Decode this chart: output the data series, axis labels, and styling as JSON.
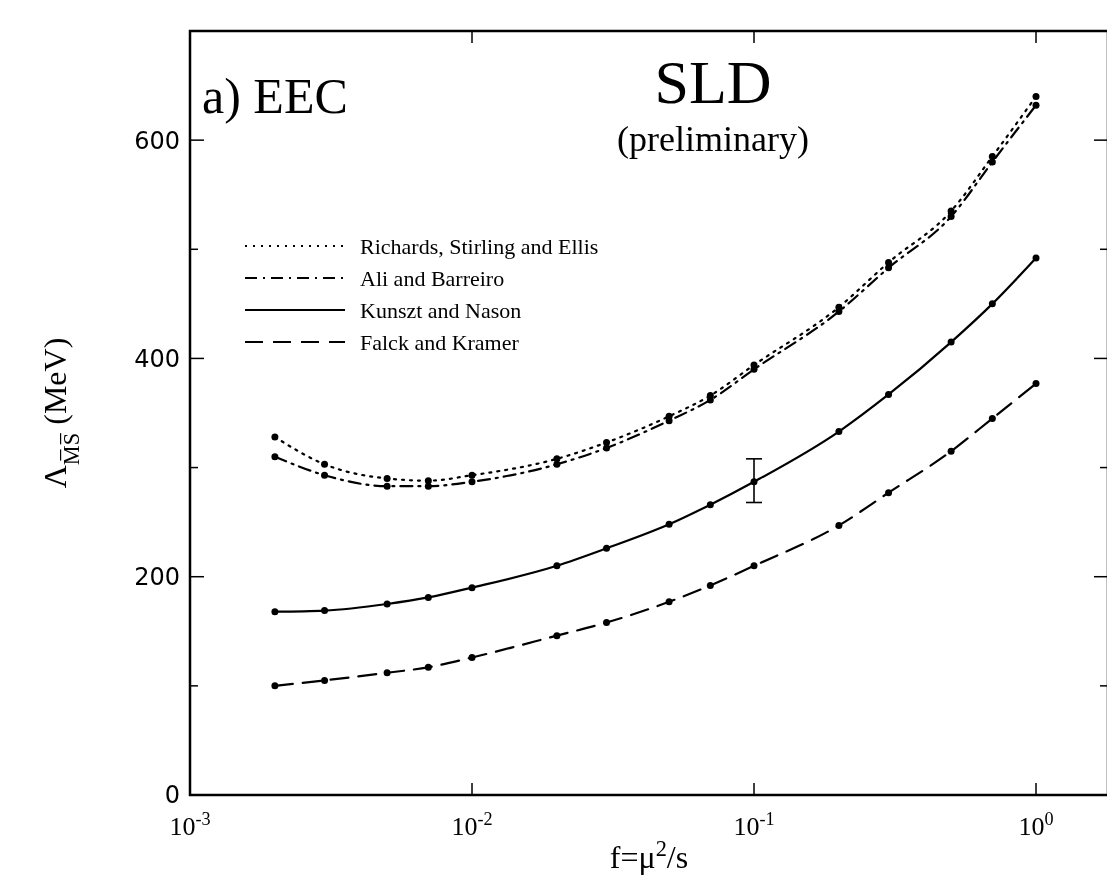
{
  "chart_data": {
    "type": "line",
    "title": "SLD",
    "subtitle": "(preliminary)",
    "xlabel": "f=μ$^{2}$/s",
    "ylabel": "Λ$_{M̅S̅}$ (MeV)",
    "annotations": [
      "a) EEC"
    ],
    "x": [
      0.002,
      0.003,
      0.005,
      0.007,
      0.01,
      0.02,
      0.03,
      0.05,
      0.07,
      0.1,
      0.2,
      0.3,
      0.5,
      0.7,
      1.0
    ],
    "series": [
      {
        "name": "Richards, Stirling and Ellis",
        "color": "#000000",
        "line_style": "dotted",
        "values": [
          328,
          303,
          290,
          288,
          293,
          308,
          323,
          347,
          366,
          394,
          447,
          488,
          535,
          585,
          640
        ]
      },
      {
        "name": "Ali and Barreiro",
        "color": "#000000",
        "line_style": "dashdot",
        "values": [
          310,
          293,
          283,
          283,
          287,
          303,
          318,
          343,
          362,
          390,
          443,
          483,
          530,
          580,
          632
        ]
      },
      {
        "name": "Kunszt and Nason",
        "color": "#000000",
        "line_style": "solid",
        "values": [
          168,
          169,
          175,
          181,
          190,
          210,
          226,
          248,
          266,
          287,
          333,
          367,
          415,
          450,
          492
        ],
        "errors": [
          null,
          null,
          null,
          null,
          null,
          null,
          null,
          null,
          null,
          [
            268,
            308
          ],
          null,
          null,
          null,
          null,
          null
        ]
      },
      {
        "name": "Falck and Kramer",
        "color": "#000000",
        "line_style": "dashed",
        "values": [
          100,
          105,
          112,
          117,
          126,
          146,
          158,
          177,
          192,
          210,
          247,
          277,
          315,
          345,
          377
        ]
      }
    ],
    "log": "x",
    "xlim": [
      0.001,
      1.8
    ],
    "ylim": [
      0,
      700
    ],
    "xticks": [
      {
        "value": 0.001,
        "label": "10$^{-3}$"
      },
      {
        "value": 0.01,
        "label": "10$^{-2}$"
      },
      {
        "value": 0.1,
        "label": "10$^{-1}$"
      },
      {
        "value": 1,
        "label": "10$^{0}$"
      }
    ],
    "yticks": [
      0,
      {
        "value": 100,
        "label": null
      },
      200,
      {
        "value": 300,
        "label": null
      },
      400,
      {
        "value": 500,
        "label": null
      },
      600
    ],
    "grid": false,
    "legend": "top left",
    "marker": "circle"
  }
}
